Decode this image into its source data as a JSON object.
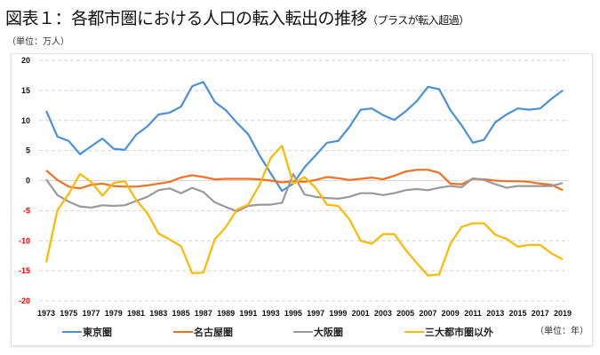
{
  "title": "図表１：各都市圏における人口の転入転出の推移",
  "subtitle": "（プラスが転入超過）",
  "y_unit": "（単位：万人）",
  "x_unit": "（単位：年）",
  "chart_data": {
    "type": "line",
    "title": "図表１：各都市圏における人口の転入転出の推移（プラスが転入超過）",
    "ylabel": "（単位：万人）",
    "xlabel": "（単位：年）",
    "ylim": [
      -20,
      20
    ],
    "yticks": [
      20,
      15,
      10,
      5,
      0,
      -5,
      -10,
      -15,
      -20
    ],
    "negative_tick_color": "#ff0000",
    "grid": "horizontal dashed",
    "legend": "bottom",
    "x": [
      1973,
      1974,
      1975,
      1976,
      1977,
      1978,
      1979,
      1980,
      1981,
      1982,
      1983,
      1984,
      1985,
      1986,
      1987,
      1988,
      1989,
      1990,
      1991,
      1992,
      1993,
      1994,
      1995,
      1996,
      1997,
      1998,
      1999,
      2000,
      2001,
      2002,
      2003,
      2004,
      2005,
      2006,
      2007,
      2008,
      2009,
      2010,
      2011,
      2012,
      2013,
      2014,
      2015,
      2016,
      2017,
      2018,
      2019
    ],
    "xticks": [
      1973,
      1975,
      1977,
      1979,
      1981,
      1983,
      1985,
      1987,
      1989,
      1991,
      1993,
      1995,
      1997,
      1999,
      2001,
      2003,
      2005,
      2007,
      2009,
      2011,
      2013,
      2015,
      2017,
      2019
    ],
    "series": [
      {
        "name": "東京圏",
        "color": "#4a90d9",
        "values": [
          11.6,
          7.3,
          6.6,
          4.4,
          5.7,
          7.0,
          5.3,
          5.1,
          7.6,
          9.0,
          11.0,
          11.3,
          12.3,
          15.7,
          16.4,
          13.1,
          11.7,
          9.6,
          7.7,
          4.2,
          1.2,
          -1.7,
          -0.5,
          2.2,
          4.2,
          6.3,
          6.6,
          8.9,
          11.8,
          12.0,
          10.9,
          10.1,
          11.5,
          13.2,
          15.6,
          15.2,
          11.7,
          9.2,
          6.3,
          6.8,
          9.7,
          11.0,
          12.0,
          11.8,
          12.0,
          13.6,
          15.0
        ]
      },
      {
        "name": "名古屋圏",
        "color": "#f07020",
        "values": [
          1.7,
          0.1,
          -1.0,
          -1.3,
          -0.7,
          -0.5,
          -0.9,
          -1.0,
          -1.0,
          -0.8,
          -0.5,
          -0.2,
          0.5,
          0.9,
          0.6,
          0.2,
          0.3,
          0.3,
          0.3,
          0.2,
          0.0,
          -0.3,
          -0.1,
          -0.2,
          0.1,
          0.6,
          0.4,
          0.1,
          0.3,
          0.5,
          0.2,
          0.8,
          1.5,
          1.8,
          1.8,
          1.3,
          -0.5,
          -0.6,
          0.3,
          0.2,
          0.0,
          -0.1,
          -0.1,
          -0.2,
          -0.5,
          -0.7,
          -1.6
        ]
      },
      {
        "name": "大阪圏",
        "color": "#999999",
        "values": [
          0.2,
          -2.4,
          -3.5,
          -4.3,
          -4.5,
          -4.1,
          -4.2,
          -4.1,
          -3.4,
          -2.7,
          -1.6,
          -1.3,
          -2.1,
          -1.2,
          -1.9,
          -3.6,
          -4.4,
          -5.1,
          -4.2,
          -4.0,
          -4.0,
          -3.7,
          1.1,
          -2.3,
          -2.7,
          -2.9,
          -3.0,
          -2.7,
          -2.1,
          -2.1,
          -2.4,
          -2.1,
          -1.6,
          -1.4,
          -1.6,
          -1.2,
          -0.9,
          -1.1,
          0.4,
          0.1,
          -0.6,
          -1.2,
          -0.9,
          -0.9,
          -0.9,
          -0.9,
          -0.4
        ]
      },
      {
        "name": "三大都市圏以外",
        "color": "#ffb800",
        "values": [
          -13.6,
          -4.9,
          -2.2,
          1.1,
          -0.2,
          -2.5,
          -0.4,
          -0.1,
          -3.2,
          -5.4,
          -8.8,
          -9.8,
          -10.9,
          -15.4,
          -15.3,
          -9.8,
          -7.7,
          -4.8,
          -4.0,
          -0.7,
          3.8,
          5.8,
          -0.5,
          0.6,
          -1.2,
          -4.0,
          -4.2,
          -6.4,
          -10.0,
          -10.5,
          -8.9,
          -8.9,
          -11.5,
          -13.7,
          -15.8,
          -15.6,
          -10.5,
          -7.7,
          -7.1,
          -7.1,
          -9.0,
          -9.7,
          -11.0,
          -10.7,
          -10.7,
          -12.1,
          -13.1
        ]
      }
    ]
  }
}
